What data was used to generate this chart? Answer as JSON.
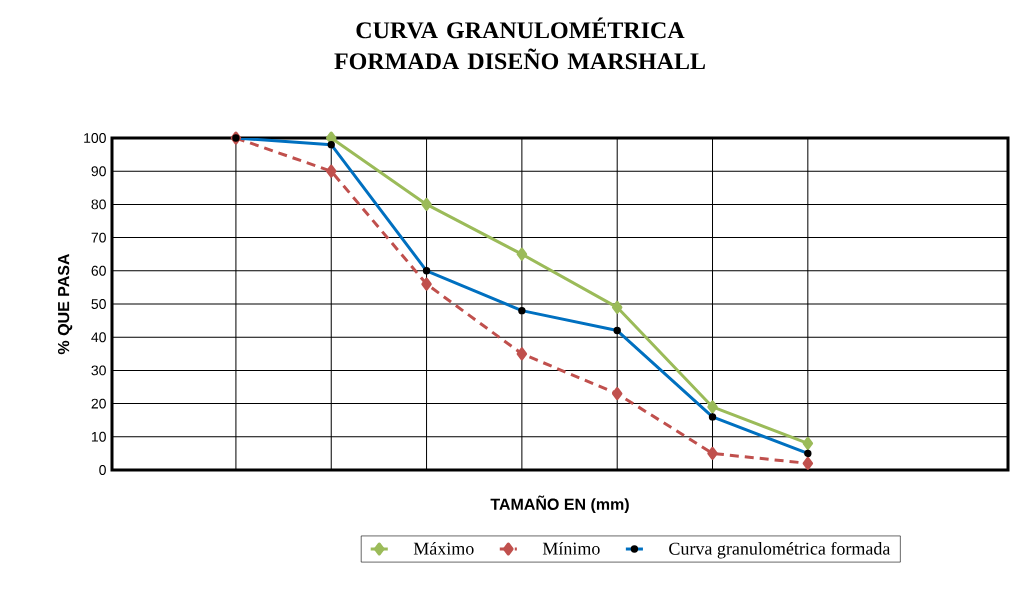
{
  "chart_data": {
    "type": "line",
    "title": "CURVA GRANULOMÉTRICA FORMADA DISEÑO MARSHALL",
    "xlabel": "TAMAÑO EN (mm)",
    "ylabel": "% QUE PASA",
    "categories": [
      null,
      null,
      null,
      null,
      null,
      null,
      null
    ],
    "ylim": [
      0,
      100
    ],
    "yticks": [
      0,
      10,
      20,
      30,
      40,
      50,
      60,
      70,
      80,
      90,
      100
    ],
    "grid": true,
    "legend": "bottom",
    "series": [
      {
        "name": "Máximo",
        "color": "#9bbb59",
        "marker": "diamond",
        "line_style": "solid",
        "values": [
          null,
          100,
          80,
          65,
          49,
          19,
          8
        ]
      },
      {
        "name": "Mínimo",
        "color": "#c0504d",
        "marker": "diamond",
        "line_style": "dashed",
        "values": [
          100,
          90,
          56,
          35,
          23,
          5,
          2
        ]
      },
      {
        "name": "Curva granulométrica formada",
        "color": "#0070c0",
        "marker": "circle",
        "line_style": "solid",
        "values": [
          100,
          98,
          60,
          48,
          42,
          16,
          5
        ]
      }
    ]
  }
}
